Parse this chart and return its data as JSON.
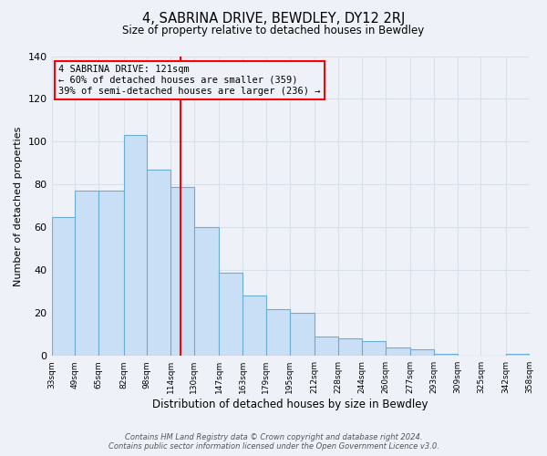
{
  "title": "4, SABRINA DRIVE, BEWDLEY, DY12 2RJ",
  "subtitle": "Size of property relative to detached houses in Bewdley",
  "xlabel": "Distribution of detached houses by size in Bewdley",
  "ylabel": "Number of detached properties",
  "bar_edges": [
    33,
    49,
    65,
    82,
    98,
    114,
    130,
    147,
    163,
    179,
    195,
    212,
    228,
    244,
    260,
    277,
    293,
    309,
    325,
    342,
    358
  ],
  "bar_heights": [
    65,
    77,
    77,
    103,
    87,
    79,
    60,
    39,
    28,
    22,
    20,
    9,
    8,
    7,
    4,
    3,
    1,
    0,
    0,
    1
  ],
  "bar_color": "#c9dff5",
  "bar_edge_color": "#6aaed6",
  "property_line_x": 121,
  "property_line_color": "red",
  "annotation_title": "4 SABRINA DRIVE: 121sqm",
  "annotation_line1": "← 60% of detached houses are smaller (359)",
  "annotation_line2": "39% of semi-detached houses are larger (236) →",
  "annotation_box_color": "red",
  "ylim": [
    0,
    140
  ],
  "yticks": [
    0,
    20,
    40,
    60,
    80,
    100,
    120,
    140
  ],
  "xtick_labels": [
    "33sqm",
    "49sqm",
    "65sqm",
    "82sqm",
    "98sqm",
    "114sqm",
    "130sqm",
    "147sqm",
    "163sqm",
    "179sqm",
    "195sqm",
    "212sqm",
    "228sqm",
    "244sqm",
    "260sqm",
    "277sqm",
    "293sqm",
    "309sqm",
    "325sqm",
    "342sqm",
    "358sqm"
  ],
  "footer_line1": "Contains HM Land Registry data © Crown copyright and database right 2024.",
  "footer_line2": "Contains public sector information licensed under the Open Government Licence v3.0.",
  "bg_color": "#eef2f8",
  "grid_color": "#d8e0ec",
  "plot_bg_color": "#eef2f8"
}
